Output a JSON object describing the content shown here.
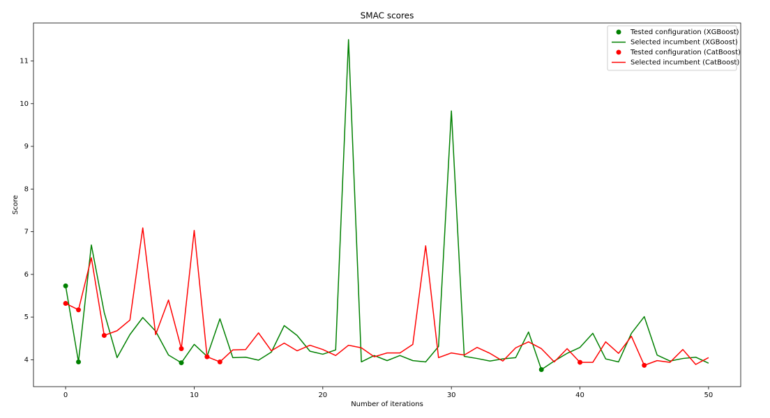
{
  "chart_data": {
    "type": "line",
    "title": "SMAC scores",
    "x_label": "Number of iterations",
    "y_label": "Score",
    "xlim": [
      -2.5,
      52.5
    ],
    "xticks": [
      0,
      10,
      20,
      30,
      40,
      50
    ],
    "ylim": [
      3.37,
      11.89
    ],
    "yticks": [
      4,
      5,
      6,
      7,
      8,
      9,
      10,
      11
    ],
    "grid": false,
    "legend": "upper right",
    "series": [
      {
        "name": "Tested configuration (XGBoost)",
        "kind": "scatter",
        "color": "#008000",
        "x": [
          0,
          1,
          9,
          37
        ],
        "values": [
          5.73,
          3.95,
          3.93,
          3.77
        ]
      },
      {
        "name": "Selected incumbent (XGBoost)",
        "kind": "line",
        "color": "#008000",
        "x": [
          0,
          1,
          2,
          3,
          4,
          5,
          6,
          7,
          8,
          9,
          10,
          11,
          12,
          13,
          14,
          15,
          16,
          17,
          18,
          19,
          20,
          21,
          22,
          23,
          24,
          25,
          26,
          27,
          28,
          29,
          30,
          31,
          32,
          33,
          34,
          35,
          36,
          37,
          38,
          39,
          40,
          41,
          42,
          43,
          44,
          45,
          46,
          47,
          48,
          49,
          50
        ],
        "values": [
          5.73,
          3.95,
          6.69,
          5.11,
          4.05,
          4.59,
          4.99,
          4.67,
          4.11,
          3.93,
          4.36,
          4.08,
          4.96,
          4.05,
          4.06,
          3.99,
          4.18,
          4.8,
          4.57,
          4.2,
          4.13,
          4.23,
          11.5,
          3.95,
          4.1,
          3.98,
          4.1,
          3.98,
          3.95,
          4.31,
          9.83,
          4.08,
          4.03,
          3.97,
          4.02,
          4.05,
          4.65,
          3.77,
          3.97,
          4.15,
          4.29,
          4.62,
          4.02,
          3.95,
          4.62,
          5.01,
          4.11,
          3.97,
          4.03,
          4.06,
          3.92
        ]
      },
      {
        "name": "Tested configuration (CatBoost)",
        "kind": "scatter",
        "color": "#ff0000",
        "x": [
          0,
          1,
          3,
          9,
          11,
          12,
          40,
          45
        ],
        "values": [
          5.32,
          5.17,
          4.57,
          4.26,
          4.07,
          3.95,
          3.94,
          3.87
        ]
      },
      {
        "name": "Selected incumbent (CatBoost)",
        "kind": "line",
        "color": "#ff0000",
        "x": [
          0,
          1,
          2,
          3,
          4,
          5,
          6,
          7,
          8,
          9,
          10,
          11,
          12,
          13,
          14,
          15,
          16,
          17,
          18,
          19,
          20,
          21,
          22,
          23,
          24,
          25,
          26,
          27,
          28,
          29,
          30,
          31,
          32,
          33,
          34,
          35,
          36,
          37,
          38,
          39,
          40,
          41,
          42,
          43,
          44,
          45,
          46,
          47,
          48,
          49,
          50
        ],
        "values": [
          5.32,
          5.17,
          6.39,
          4.57,
          4.68,
          4.93,
          7.09,
          4.59,
          5.4,
          4.26,
          7.03,
          4.07,
          3.95,
          4.23,
          4.24,
          4.63,
          4.21,
          4.39,
          4.21,
          4.34,
          4.24,
          4.1,
          4.34,
          4.28,
          4.07,
          4.16,
          4.16,
          4.36,
          6.67,
          4.05,
          4.16,
          4.11,
          4.29,
          4.15,
          3.97,
          4.28,
          4.42,
          4.26,
          3.95,
          4.26,
          3.94,
          3.94,
          4.42,
          4.15,
          4.55,
          3.87,
          3.98,
          3.94,
          4.24,
          3.89,
          4.05
        ]
      }
    ]
  }
}
